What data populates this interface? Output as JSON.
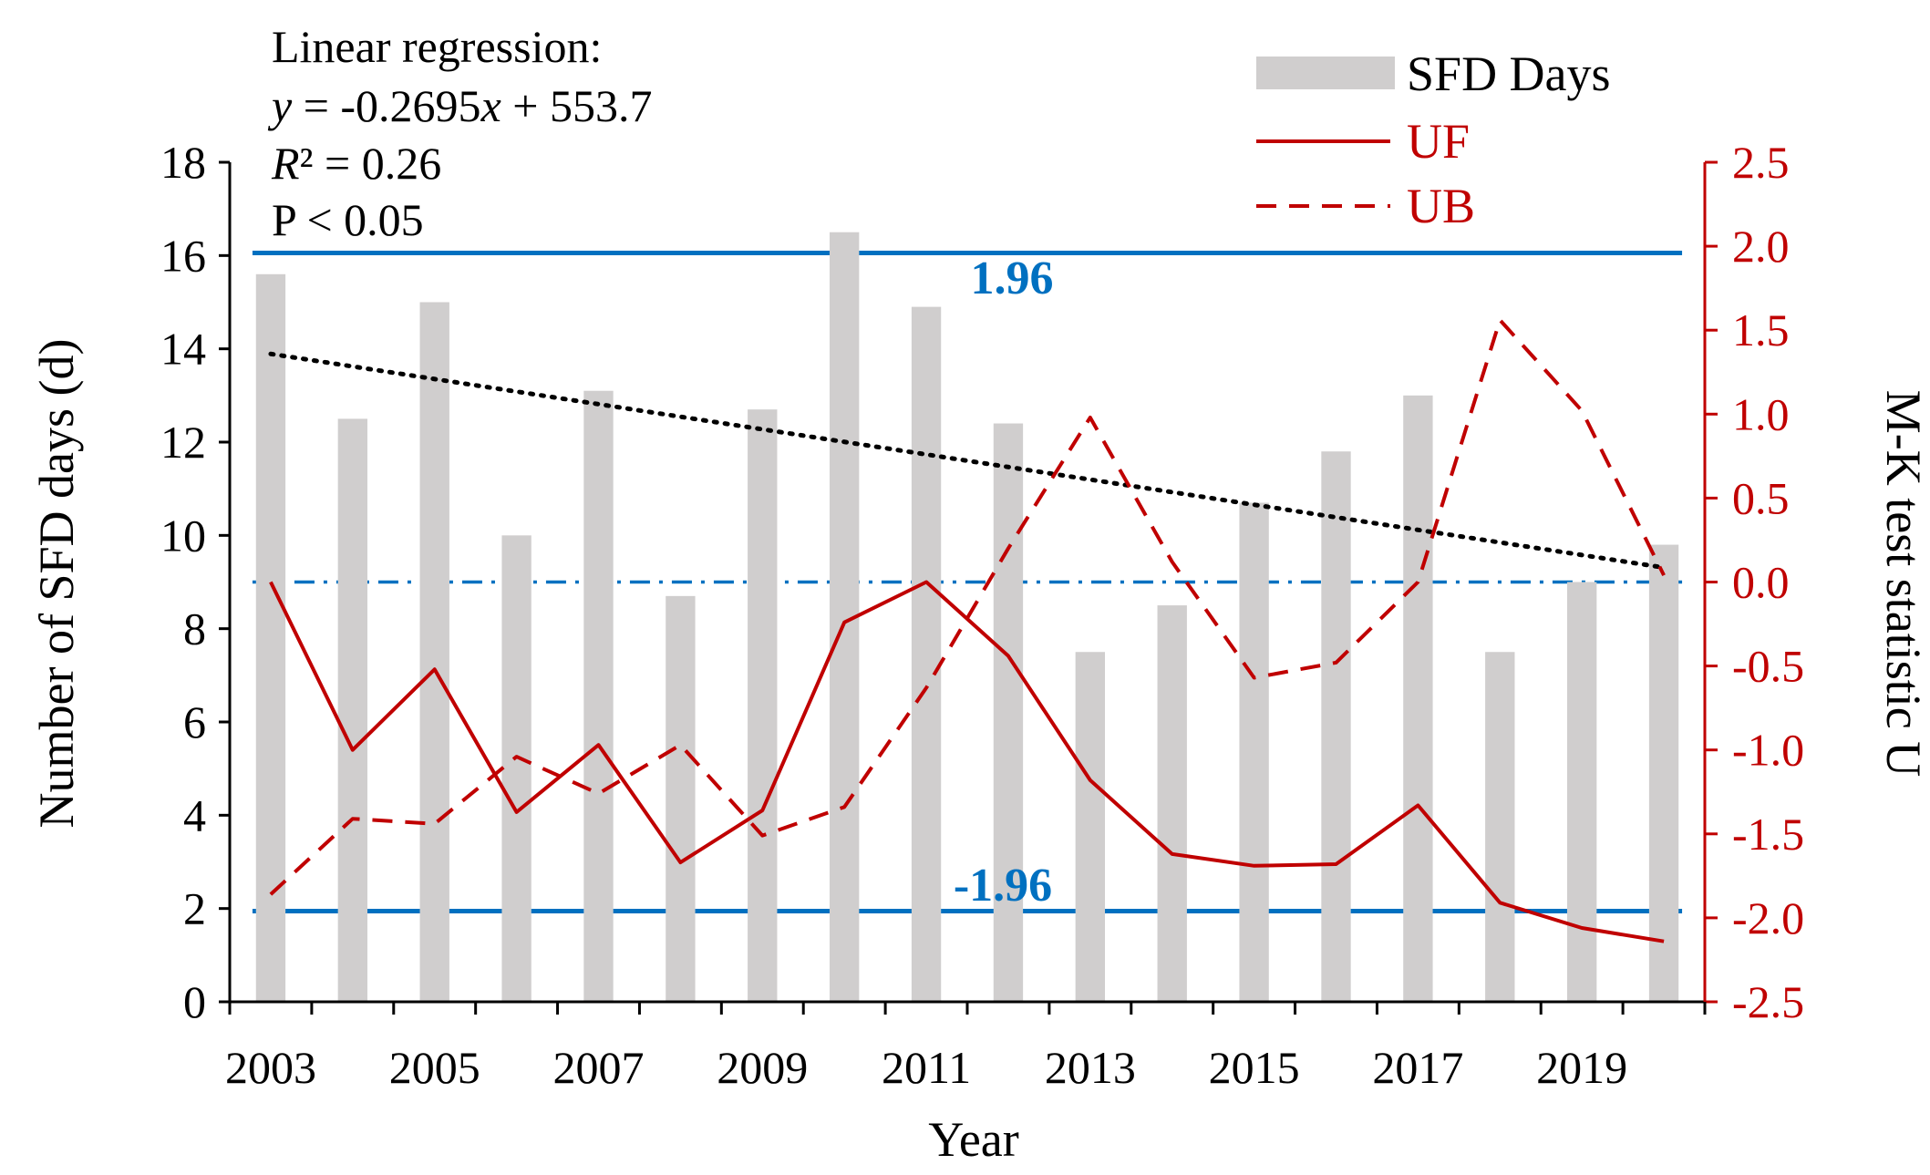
{
  "chart_data": {
    "type": "bar+line",
    "x": [
      2003,
      2004,
      2005,
      2006,
      2007,
      2008,
      2009,
      2010,
      2011,
      2012,
      2013,
      2014,
      2015,
      2016,
      2017,
      2018,
      2019,
      2020
    ],
    "x_tick_labels": [
      "2003",
      "2005",
      "2007",
      "2009",
      "2011",
      "2013",
      "2015",
      "2017",
      "2019"
    ],
    "xlabel": "Year",
    "ylabel_left": "Number of SFD days (d)",
    "ylabel_right": "M-K test statistic U",
    "ylim_left": [
      0,
      18
    ],
    "ylim_right": [
      -2.5,
      2.5
    ],
    "yticks_left": [
      "0",
      "2",
      "4",
      "6",
      "8",
      "10",
      "12",
      "14",
      "16",
      "18"
    ],
    "yticks_right": [
      "-2.5",
      "-2.0",
      "-1.5",
      "-1.0",
      "-0.5",
      "0.0",
      "0.5",
      "1.0",
      "1.5",
      "2.0",
      "2.5"
    ],
    "series": [
      {
        "name": "SFD Days",
        "type": "bar",
        "axis": "left",
        "color": "#d0cece",
        "values": [
          15.6,
          12.5,
          15.0,
          10.0,
          13.1,
          8.7,
          12.7,
          16.5,
          14.9,
          12.4,
          7.5,
          8.5,
          10.7,
          11.8,
          13.0,
          7.5,
          9.0,
          9.8
        ]
      },
      {
        "name": "UF",
        "type": "line",
        "axis": "right",
        "style": "solid",
        "color": "#c00000",
        "values": [
          0.0,
          -1.0,
          -0.52,
          -1.37,
          -0.97,
          -1.67,
          -1.36,
          -0.24,
          0.0,
          -0.44,
          -1.18,
          -1.62,
          -1.69,
          -1.68,
          -1.33,
          -1.91,
          -2.06,
          -2.14
        ]
      },
      {
        "name": "UB",
        "type": "line",
        "axis": "right",
        "style": "dashed",
        "color": "#c00000",
        "values": [
          -1.86,
          -1.41,
          -1.44,
          -1.04,
          -1.26,
          -0.97,
          -1.51,
          -1.34,
          -0.63,
          0.2,
          0.98,
          0.12,
          -0.57,
          -0.48,
          0.0,
          1.56,
          1.02,
          0.04
        ]
      }
    ],
    "trendline": {
      "style": "dotted",
      "color": "#000000",
      "slope": -0.2695,
      "intercept": 553.7
    },
    "thresholds": [
      {
        "value": 1.96,
        "label": "1.96",
        "color": "#0070c0"
      },
      {
        "value": -1.96,
        "label": "-1.96",
        "color": "#0070c0"
      }
    ],
    "zero_line": {
      "value": 0.0,
      "style": "dash-dot",
      "color": "#0070c0"
    },
    "annotation": {
      "line1": "Linear regression:",
      "eq_y": "y",
      "eq_mid": " = -0.2695",
      "eq_x": "x",
      "eq_end": " + 553.7",
      "r2_r": "R",
      "r2_rest": "² = 0.26",
      "p": "P < 0.05"
    },
    "legend": {
      "placement": "top-right",
      "items": [
        {
          "label": "SFD Days",
          "kind": "bar"
        },
        {
          "label": "UF",
          "kind": "solid"
        },
        {
          "label": "UB",
          "kind": "dashed"
        }
      ]
    }
  }
}
